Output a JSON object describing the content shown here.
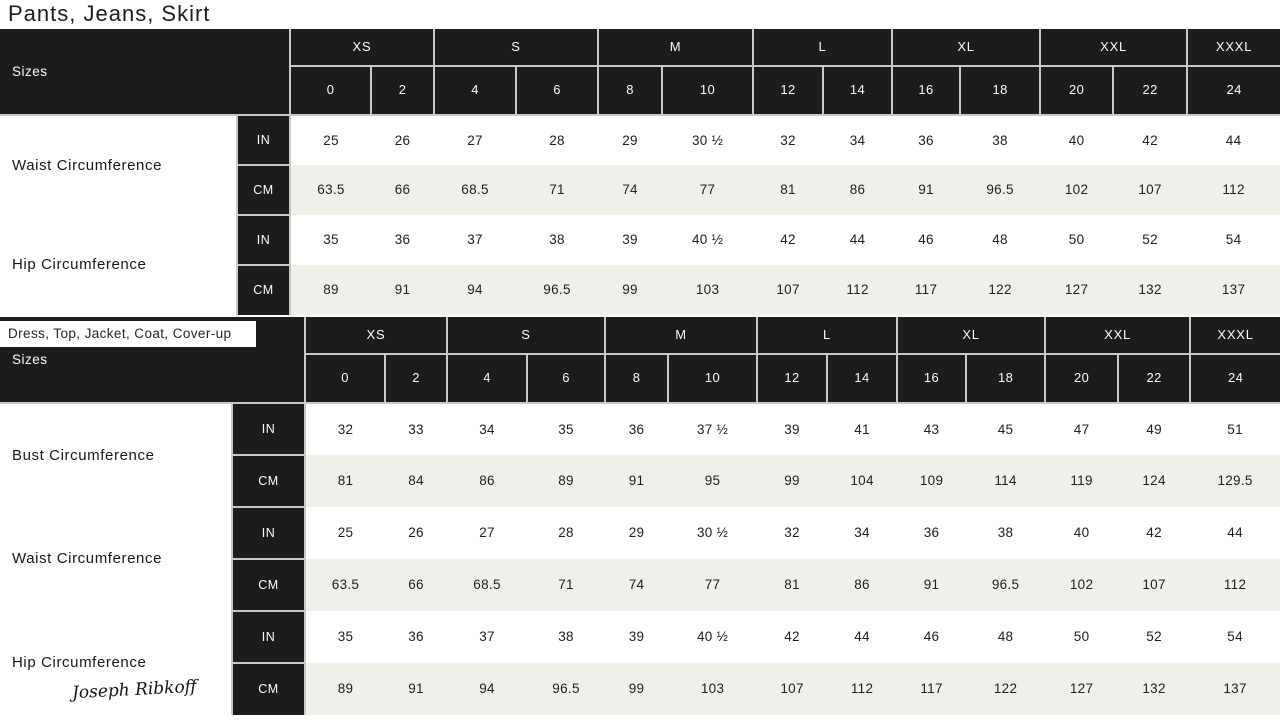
{
  "page": {
    "title": "Pants, Jeans, Skirt",
    "table2_title": "Dress, Top, Jacket, Coat, Cover-up",
    "brand_signature": "Joseph Ribkoff"
  },
  "colors": {
    "header_bg": "#1e1b1c",
    "alt_row_bg": "#f0f0eb",
    "cell_border": "#c9c8c6",
    "text_dark": "#202020",
    "text_light": "#fbfbfa"
  },
  "units": {
    "inches": "IN",
    "centimeters": "CM"
  },
  "size_header": {
    "label": "Sizes",
    "groups": [
      {
        "label": "XS",
        "sizes": [
          "0",
          "2"
        ]
      },
      {
        "label": "S",
        "sizes": [
          "4",
          "6"
        ]
      },
      {
        "label": "M",
        "sizes": [
          "8",
          "10"
        ]
      },
      {
        "label": "L",
        "sizes": [
          "12",
          "14"
        ]
      },
      {
        "label": "XL",
        "sizes": [
          "16",
          "18"
        ]
      },
      {
        "label": "XXL",
        "sizes": [
          "20",
          "22"
        ]
      },
      {
        "label": "XXXL",
        "sizes": [
          "24"
        ]
      }
    ]
  },
  "tables": [
    {
      "title": "Pants, Jeans, Skirt",
      "measurements": [
        {
          "label": "Waist Circumference",
          "in": [
            "25",
            "26",
            "27",
            "28",
            "29",
            "30 ½",
            "32",
            "34",
            "36",
            "38",
            "40",
            "42",
            "44"
          ],
          "cm": [
            "63.5",
            "66",
            "68.5",
            "71",
            "74",
            "77",
            "81",
            "86",
            "91",
            "96.5",
            "102",
            "107",
            "112"
          ]
        },
        {
          "label": "Hip Circumference",
          "in": [
            "35",
            "36",
            "37",
            "38",
            "39",
            "40 ½",
            "42",
            "44",
            "46",
            "48",
            "50",
            "52",
            "54"
          ],
          "cm": [
            "89",
            "91",
            "94",
            "96.5",
            "99",
            "103",
            "107",
            "112",
            "117",
            "122",
            "127",
            "132",
            "137"
          ]
        }
      ]
    },
    {
      "title": "Dress, Top, Jacket, Coat, Cover-up",
      "measurements": [
        {
          "label": "Bust Circumference",
          "in": [
            "32",
            "33",
            "34",
            "35",
            "36",
            "37 ½",
            "39",
            "41",
            "43",
            "45",
            "47",
            "49",
            "51"
          ],
          "cm": [
            "81",
            "84",
            "86",
            "89",
            "91",
            "95",
            "99",
            "104",
            "109",
            "114",
            "119",
            "124",
            "129.5"
          ]
        },
        {
          "label": "Waist Circumference",
          "in": [
            "25",
            "26",
            "27",
            "28",
            "29",
            "30 ½",
            "32",
            "34",
            "36",
            "38",
            "40",
            "42",
            "44"
          ],
          "cm": [
            "63.5",
            "66",
            "68.5",
            "71",
            "74",
            "77",
            "81",
            "86",
            "91",
            "96.5",
            "102",
            "107",
            "112"
          ]
        },
        {
          "label": "Hip Circumference",
          "in": [
            "35",
            "36",
            "37",
            "38",
            "39",
            "40 ½",
            "42",
            "44",
            "46",
            "48",
            "50",
            "52",
            "54"
          ],
          "cm": [
            "89",
            "91",
            "94",
            "96.5",
            "99",
            "103",
            "107",
            "112",
            "117",
            "122",
            "127",
            "132",
            "137"
          ]
        }
      ]
    }
  ]
}
